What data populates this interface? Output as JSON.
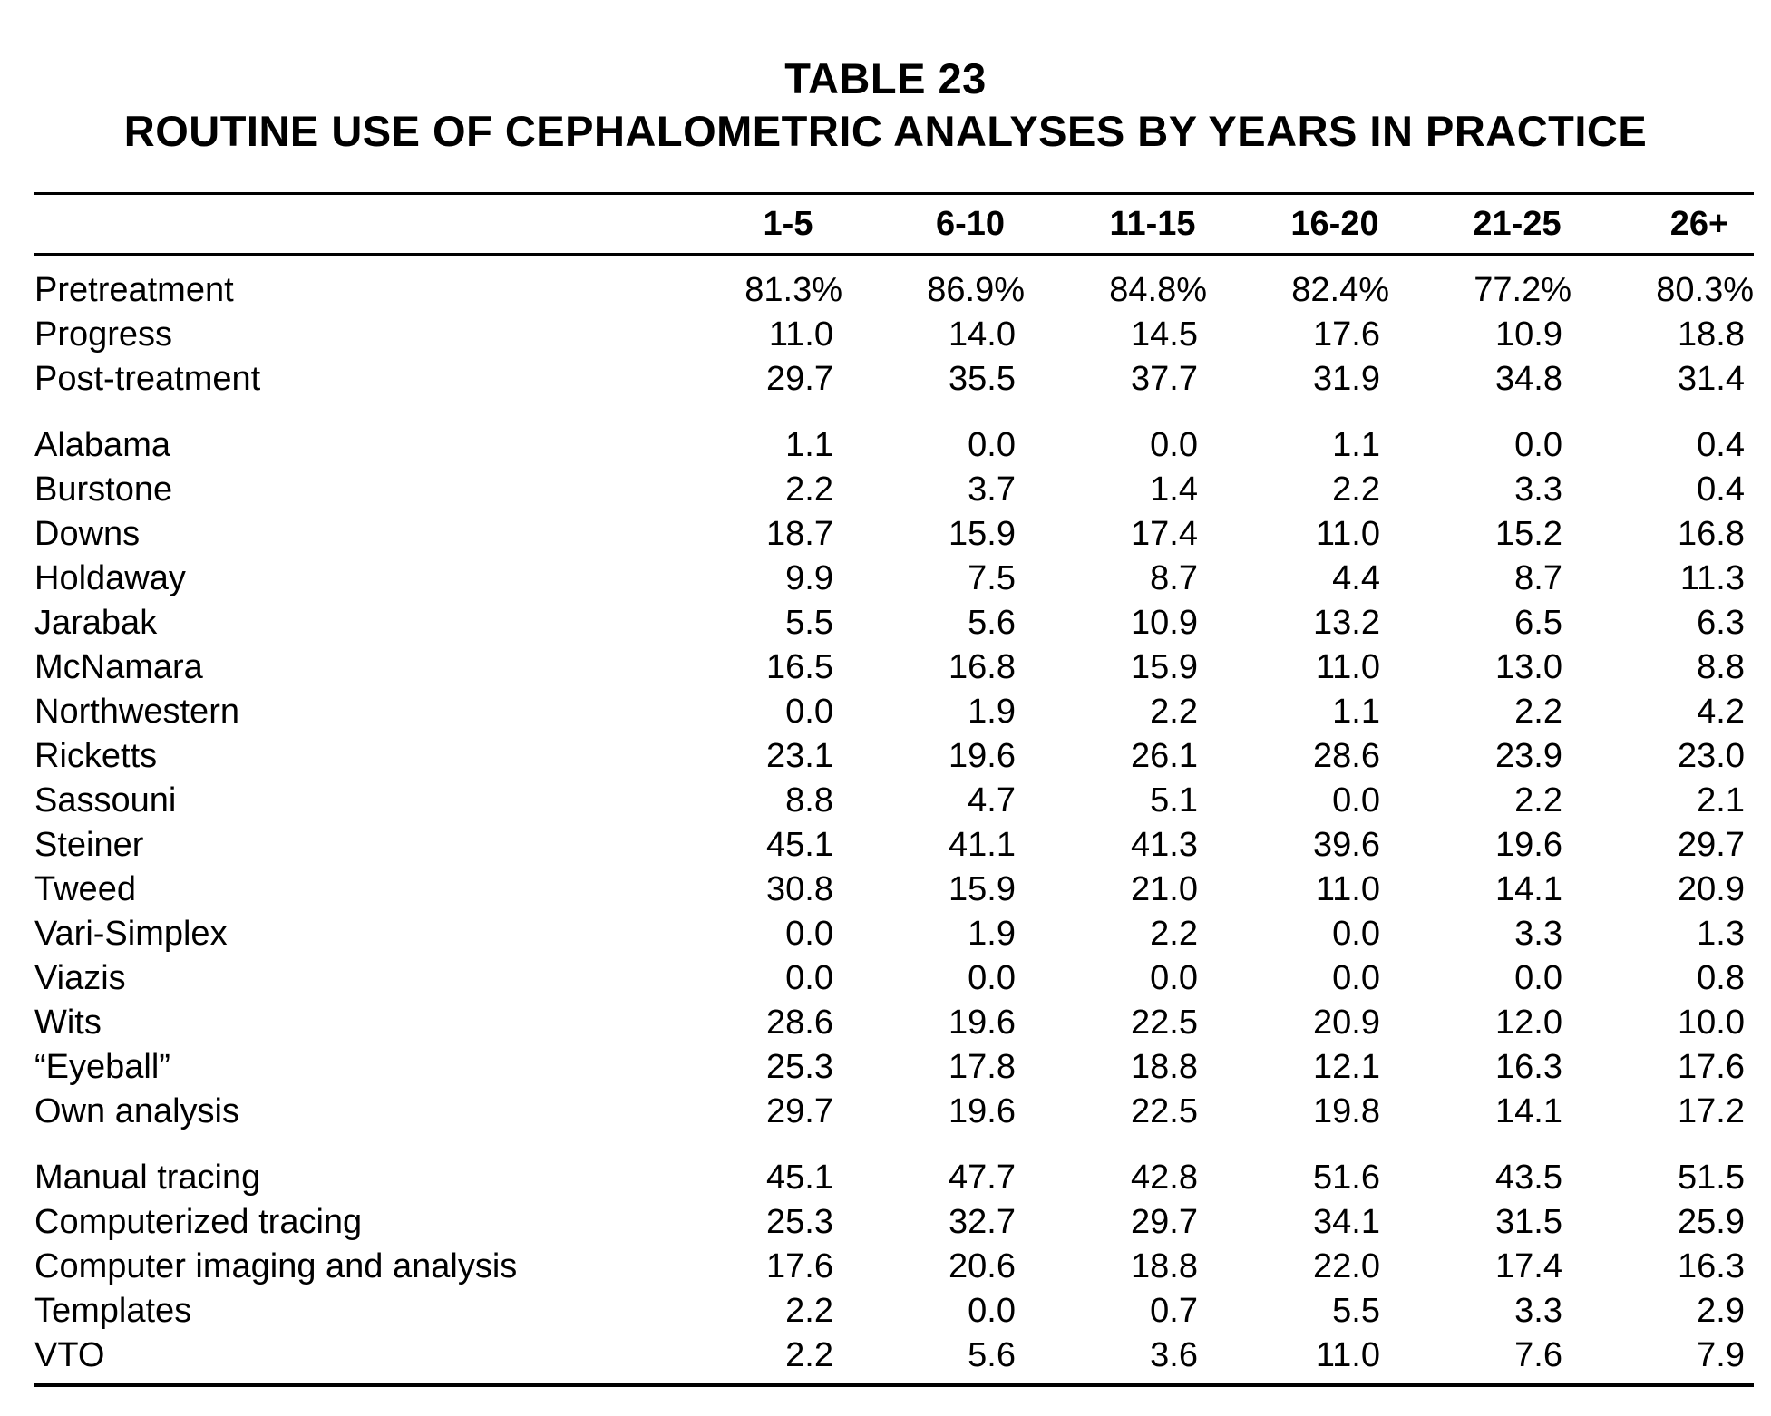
{
  "table": {
    "number": "TABLE 23",
    "title": "ROUTINE USE OF CEPHALOMETRIC ANALYSES BY YEARS IN PRACTICE",
    "columns": [
      "",
      "1-5",
      "6-10",
      "11-15",
      "16-20",
      "21-25",
      "26+"
    ],
    "groups": [
      {
        "rows": [
          {
            "label": "Pretreatment",
            "values": [
              "81.3%",
              "86.9%",
              "84.8%",
              "82.4%",
              "77.2%",
              "80.3%"
            ]
          },
          {
            "label": "Progress",
            "values": [
              "11.0",
              "14.0",
              "14.5",
              "17.6",
              "10.9",
              "18.8"
            ]
          },
          {
            "label": "Post-treatment",
            "values": [
              "29.7",
              "35.5",
              "37.7",
              "31.9",
              "34.8",
              "31.4"
            ]
          }
        ]
      },
      {
        "rows": [
          {
            "label": "Alabama",
            "values": [
              "1.1",
              "0.0",
              "0.0",
              "1.1",
              "0.0",
              "0.4"
            ]
          },
          {
            "label": "Burstone",
            "values": [
              "2.2",
              "3.7",
              "1.4",
              "2.2",
              "3.3",
              "0.4"
            ]
          },
          {
            "label": "Downs",
            "values": [
              "18.7",
              "15.9",
              "17.4",
              "11.0",
              "15.2",
              "16.8"
            ]
          },
          {
            "label": "Holdaway",
            "values": [
              "9.9",
              "7.5",
              "8.7",
              "4.4",
              "8.7",
              "11.3"
            ]
          },
          {
            "label": "Jarabak",
            "values": [
              "5.5",
              "5.6",
              "10.9",
              "13.2",
              "6.5",
              "6.3"
            ]
          },
          {
            "label": "McNamara",
            "values": [
              "16.5",
              "16.8",
              "15.9",
              "11.0",
              "13.0",
              "8.8"
            ]
          },
          {
            "label": "Northwestern",
            "values": [
              "0.0",
              "1.9",
              "2.2",
              "1.1",
              "2.2",
              "4.2"
            ]
          },
          {
            "label": "Ricketts",
            "values": [
              "23.1",
              "19.6",
              "26.1",
              "28.6",
              "23.9",
              "23.0"
            ]
          },
          {
            "label": "Sassouni",
            "values": [
              "8.8",
              "4.7",
              "5.1",
              "0.0",
              "2.2",
              "2.1"
            ]
          },
          {
            "label": "Steiner",
            "values": [
              "45.1",
              "41.1",
              "41.3",
              "39.6",
              "19.6",
              "29.7"
            ]
          },
          {
            "label": "Tweed",
            "values": [
              "30.8",
              "15.9",
              "21.0",
              "11.0",
              "14.1",
              "20.9"
            ]
          },
          {
            "label": "Vari-Simplex",
            "values": [
              "0.0",
              "1.9",
              "2.2",
              "0.0",
              "3.3",
              "1.3"
            ]
          },
          {
            "label": "Viazis",
            "values": [
              "0.0",
              "0.0",
              "0.0",
              "0.0",
              "0.0",
              "0.8"
            ]
          },
          {
            "label": "Wits",
            "values": [
              "28.6",
              "19.6",
              "22.5",
              "20.9",
              "12.0",
              "10.0"
            ]
          },
          {
            "label": "“Eyeball”",
            "values": [
              "25.3",
              "17.8",
              "18.8",
              "12.1",
              "16.3",
              "17.6"
            ]
          },
          {
            "label": "Own analysis",
            "values": [
              "29.7",
              "19.6",
              "22.5",
              "19.8",
              "14.1",
              "17.2"
            ]
          }
        ]
      },
      {
        "rows": [
          {
            "label": "Manual tracing",
            "values": [
              "45.1",
              "47.7",
              "42.8",
              "51.6",
              "43.5",
              "51.5"
            ]
          },
          {
            "label": "Computerized tracing",
            "values": [
              "25.3",
              "32.7",
              "29.7",
              "34.1",
              "31.5",
              "25.9"
            ]
          },
          {
            "label": "Computer imaging and analysis",
            "values": [
              "17.6",
              "20.6",
              "18.8",
              "22.0",
              "17.4",
              "16.3"
            ]
          },
          {
            "label": "Templates",
            "values": [
              "2.2",
              "0.0",
              "0.7",
              "5.5",
              "3.3",
              "2.9"
            ]
          },
          {
            "label": "VTO",
            "values": [
              "2.2",
              "5.6",
              "3.6",
              "11.0",
              "7.6",
              "7.9"
            ]
          }
        ]
      }
    ]
  }
}
